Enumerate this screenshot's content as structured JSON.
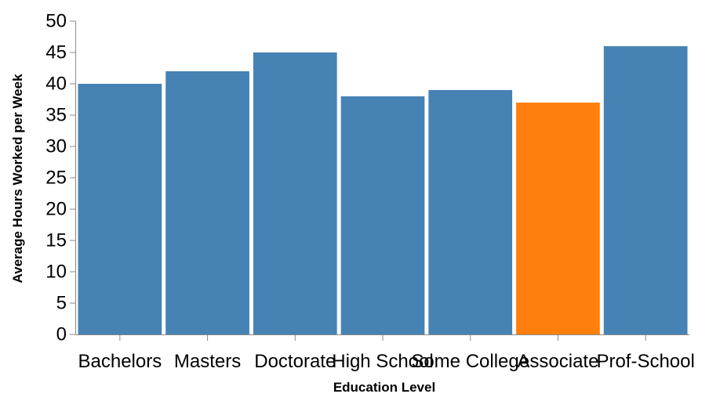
{
  "chart_data": {
    "type": "bar",
    "categories": [
      "Bachelors",
      "Masters",
      "Doctorate",
      "High School",
      "Some College",
      "Associate",
      "Prof-School"
    ],
    "values": [
      40,
      42,
      45,
      38,
      39,
      37,
      46
    ],
    "highlight_category": "Associate",
    "xlabel": "Education Level",
    "ylabel": "Average Hours Worked per Week",
    "ylim": [
      0,
      50
    ],
    "yticks": [
      0,
      5,
      10,
      15,
      20,
      25,
      30,
      35,
      40,
      45,
      50
    ],
    "grid": false,
    "colors": {
      "bar": "#4682b4",
      "highlight": "#ff7f0e"
    }
  }
}
